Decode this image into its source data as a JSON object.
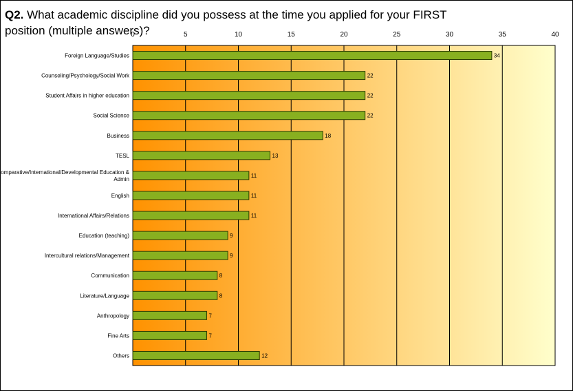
{
  "chart_data": {
    "type": "bar",
    "orientation": "horizontal",
    "title_prefix": "Q2.",
    "title": "What academic discipline did you possess at the time you applied for your FIRST position (multiple answers)?",
    "xlim": [
      0,
      40
    ],
    "x_ticks": [
      0,
      5,
      10,
      15,
      20,
      25,
      30,
      35,
      40
    ],
    "grid": true,
    "legend": "none",
    "categories": [
      "Foreign Language/Studies",
      "Counseling/Psychology/Social Work",
      "Student Affairs in higher education",
      "Social Science",
      "Business",
      "TESL",
      "Comparative/International/Developmental Education & Admin",
      "English",
      "International Affairs/Relations",
      "Education (teaching)",
      "Intercultural relations/Management",
      "Communication",
      "Literature/Language",
      "Anthropology",
      "Fine Arts",
      "Others"
    ],
    "values": [
      34,
      22,
      22,
      22,
      18,
      13,
      11,
      11,
      11,
      9,
      9,
      8,
      8,
      7,
      7,
      12
    ],
    "colors": {
      "bar_fill": "#88b020",
      "bar_stroke": "#2a3a00",
      "gradient_start": "#ff9200",
      "gradient_end": "#ffffcc",
      "grid": "#000000"
    }
  }
}
